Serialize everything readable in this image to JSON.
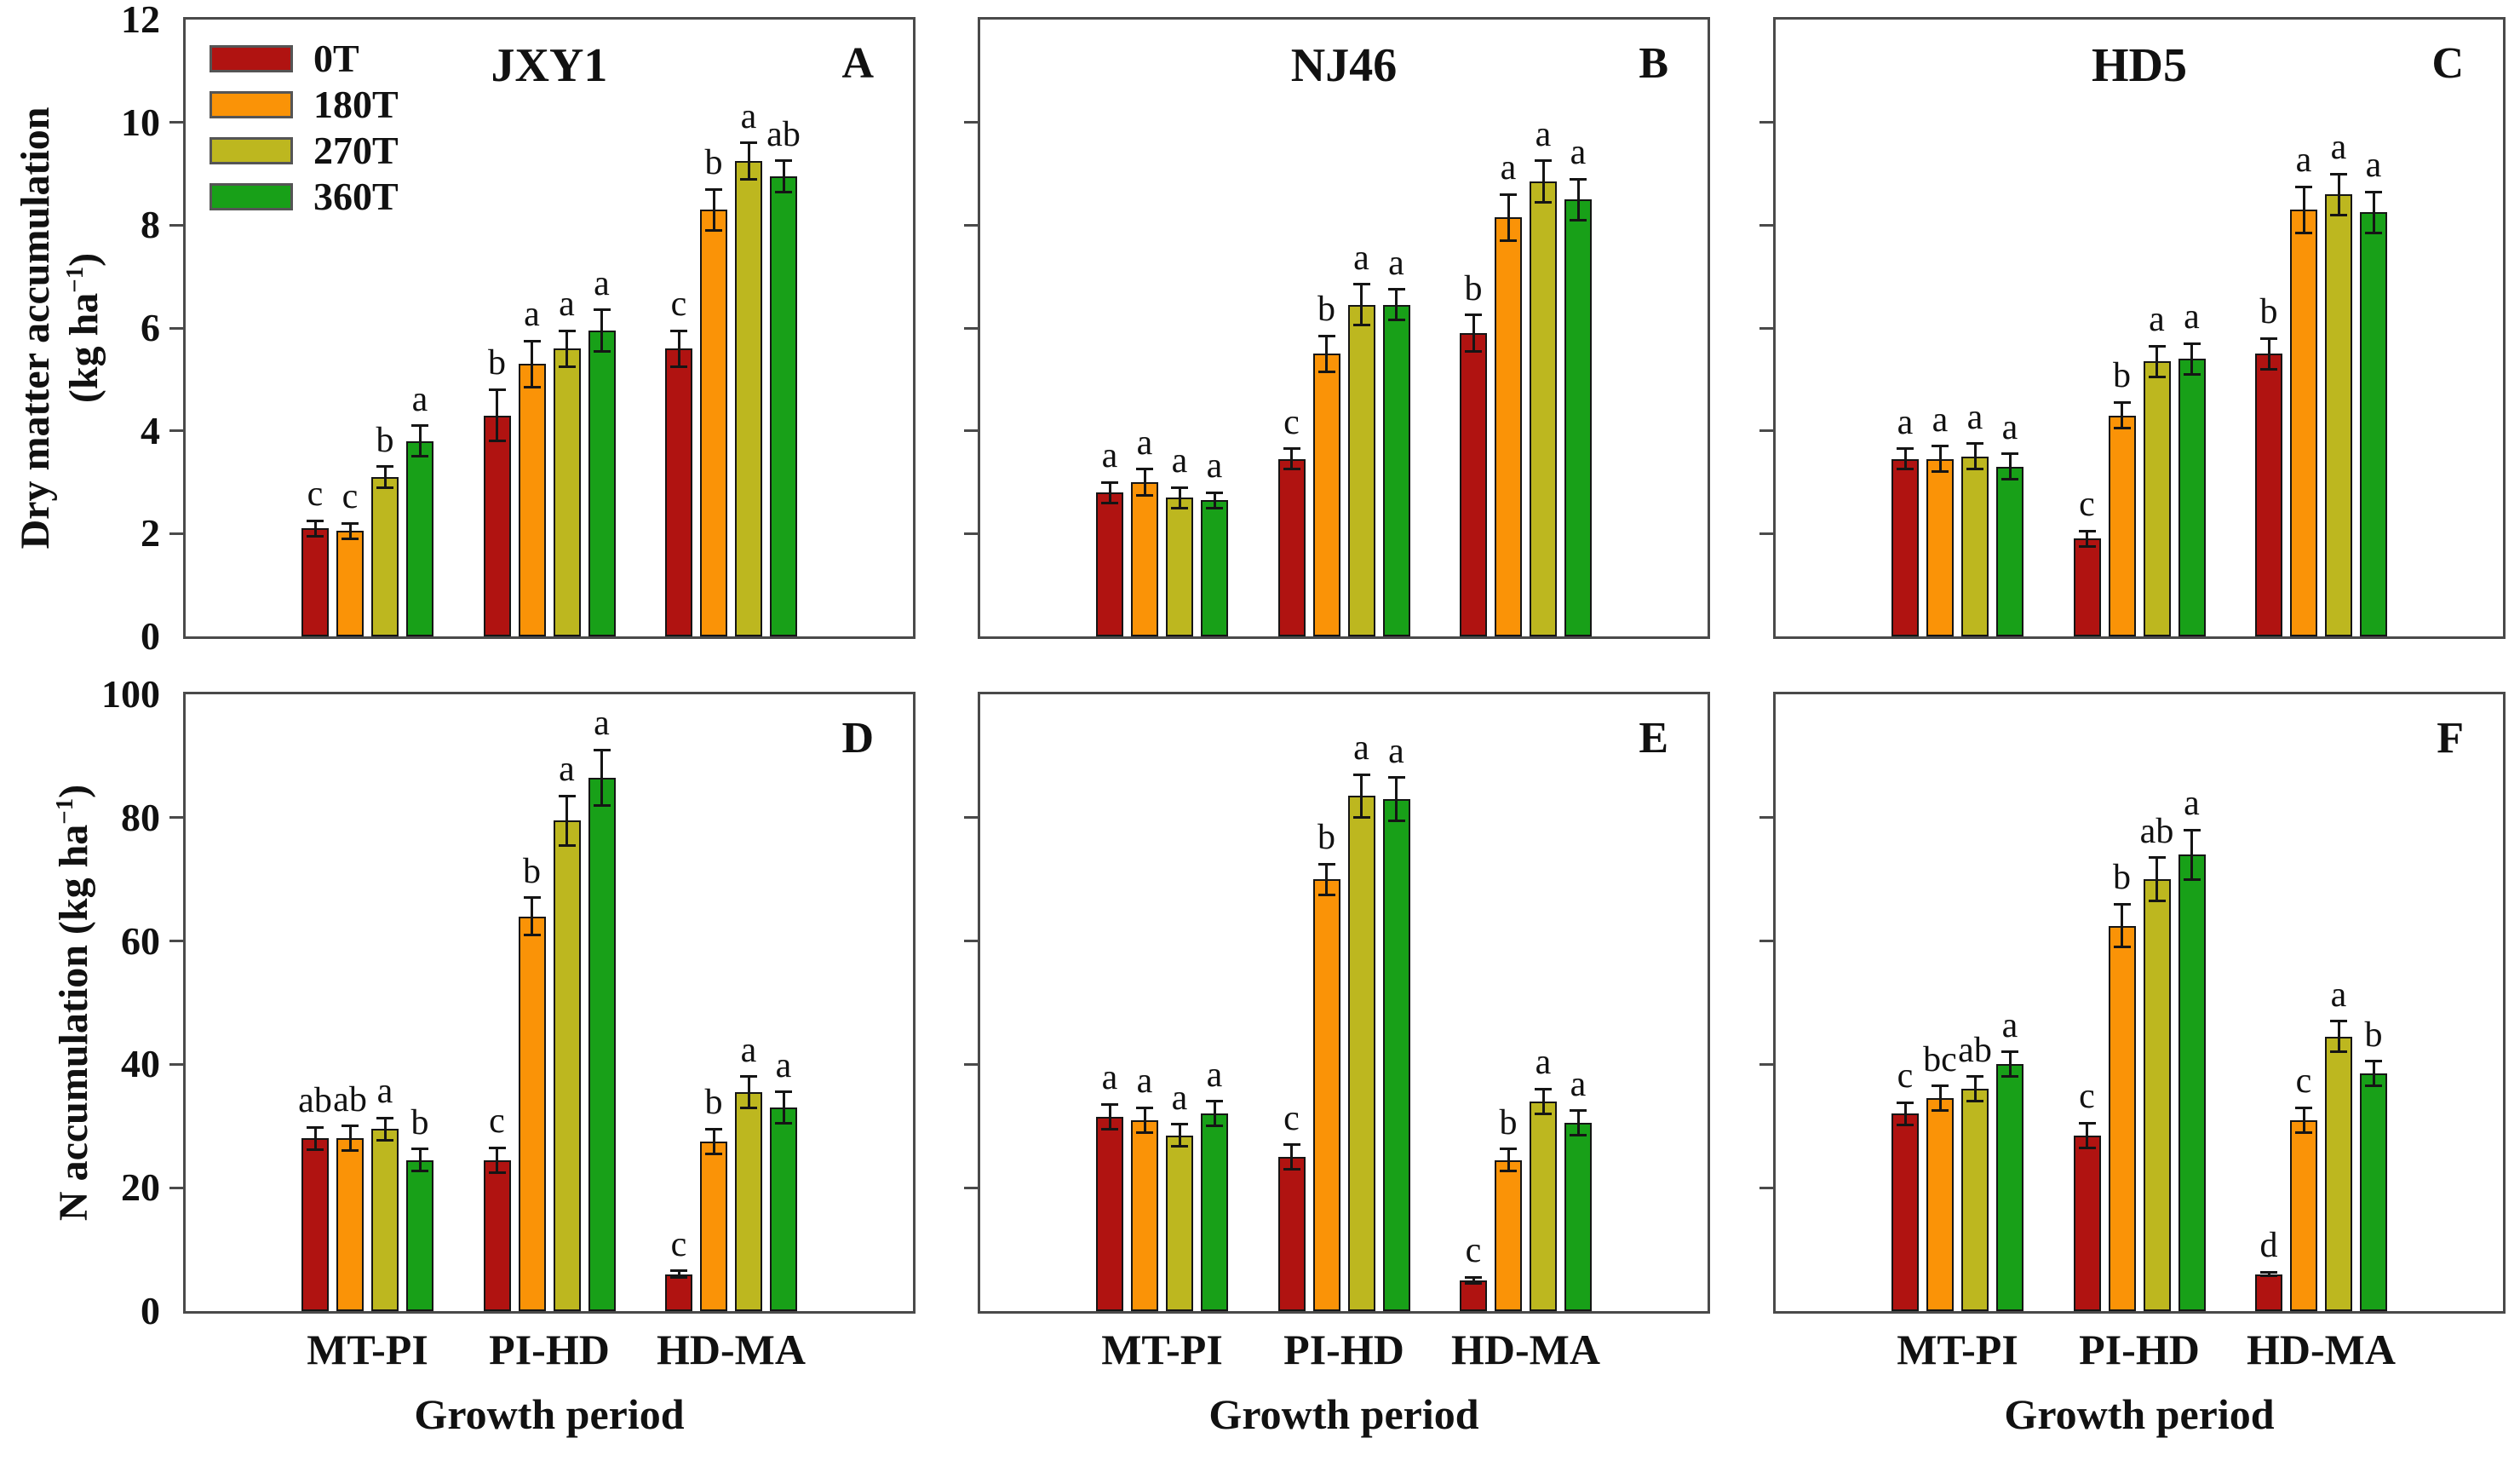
{
  "axis": {
    "ylabel_top_line1": "Dry matter accumulation",
    "ylabel_top_line2_pre": "(kg ha",
    "sup": "−1",
    "ylabel_top_line2_post": ")",
    "ylabel_bottom_pre": "N accumulation (kg ha",
    "ylabel_bottom_post": ")",
    "xlabel": "Growth period"
  },
  "chart_data": {
    "type": "bar",
    "categories": [
      "MT-PI",
      "PI-HD",
      "HD-MA"
    ],
    "series": [
      {
        "name": "0T",
        "color": "#B01311"
      },
      {
        "name": "180T",
        "color": "#FA9307"
      },
      {
        "name": "270T",
        "color": "#BDB71F"
      },
      {
        "name": "360T",
        "color": "#18A018"
      }
    ],
    "legend_position": "top-left-panel-A",
    "grid": false,
    "xlabel": "Growth period",
    "ylabel_top": "Dry matter accumulation (kg ha−1)",
    "ylabel_bottom": "N accumulation (kg ha−1)",
    "panels": [
      {
        "letter": "A",
        "title": "JXY1",
        "row": 0,
        "col": 0,
        "ylim": [
          0,
          12
        ],
        "yticks": [
          0,
          2,
          4,
          6,
          8,
          10,
          12
        ],
        "groups": [
          {
            "category": "MT-PI",
            "bars": [
              {
                "series": "0T",
                "value": 2.1,
                "error": 0.15,
                "letter": "c"
              },
              {
                "series": "180T",
                "value": 2.05,
                "error": 0.15,
                "letter": "c"
              },
              {
                "series": "270T",
                "value": 3.1,
                "error": 0.2,
                "letter": "b"
              },
              {
                "series": "360T",
                "value": 3.8,
                "error": 0.3,
                "letter": "a"
              }
            ]
          },
          {
            "category": "PI-HD",
            "bars": [
              {
                "series": "0T",
                "value": 4.3,
                "error": 0.5,
                "letter": "b"
              },
              {
                "series": "180T",
                "value": 5.3,
                "error": 0.45,
                "letter": "a"
              },
              {
                "series": "270T",
                "value": 5.6,
                "error": 0.35,
                "letter": "a"
              },
              {
                "series": "360T",
                "value": 5.95,
                "error": 0.4,
                "letter": "a"
              }
            ]
          },
          {
            "category": "HD-MA",
            "bars": [
              {
                "series": "0T",
                "value": 5.6,
                "error": 0.35,
                "letter": "c"
              },
              {
                "series": "180T",
                "value": 8.3,
                "error": 0.4,
                "letter": "b"
              },
              {
                "series": "270T",
                "value": 9.25,
                "error": 0.35,
                "letter": "a"
              },
              {
                "series": "360T",
                "value": 8.95,
                "error": 0.3,
                "letter": "ab"
              }
            ]
          }
        ]
      },
      {
        "letter": "B",
        "title": "NJ46",
        "row": 0,
        "col": 1,
        "ylim": [
          0,
          12
        ],
        "yticks": [
          0,
          2,
          4,
          6,
          8,
          10,
          12
        ],
        "groups": [
          {
            "category": "MT-PI",
            "bars": [
              {
                "series": "0T",
                "value": 2.8,
                "error": 0.2,
                "letter": "a"
              },
              {
                "series": "180T",
                "value": 3.0,
                "error": 0.25,
                "letter": "a"
              },
              {
                "series": "270T",
                "value": 2.7,
                "error": 0.2,
                "letter": "a"
              },
              {
                "series": "360T",
                "value": 2.65,
                "error": 0.15,
                "letter": "a"
              }
            ]
          },
          {
            "category": "PI-HD",
            "bars": [
              {
                "series": "0T",
                "value": 3.45,
                "error": 0.2,
                "letter": "c"
              },
              {
                "series": "180T",
                "value": 5.5,
                "error": 0.35,
                "letter": "b"
              },
              {
                "series": "270T",
                "value": 6.45,
                "error": 0.4,
                "letter": "a"
              },
              {
                "series": "360T",
                "value": 6.45,
                "error": 0.3,
                "letter": "a"
              }
            ]
          },
          {
            "category": "HD-MA",
            "bars": [
              {
                "series": "0T",
                "value": 5.9,
                "error": 0.35,
                "letter": "b"
              },
              {
                "series": "180T",
                "value": 8.15,
                "error": 0.45,
                "letter": "a"
              },
              {
                "series": "270T",
                "value": 8.85,
                "error": 0.4,
                "letter": "a"
              },
              {
                "series": "360T",
                "value": 8.5,
                "error": 0.4,
                "letter": "a"
              }
            ]
          }
        ]
      },
      {
        "letter": "C",
        "title": "HD5",
        "row": 0,
        "col": 2,
        "ylim": [
          0,
          12
        ],
        "yticks": [
          0,
          2,
          4,
          6,
          8,
          10,
          12
        ],
        "groups": [
          {
            "category": "MT-PI",
            "bars": [
              {
                "series": "0T",
                "value": 3.45,
                "error": 0.2,
                "letter": "a"
              },
              {
                "series": "180T",
                "value": 3.45,
                "error": 0.25,
                "letter": "a"
              },
              {
                "series": "270T",
                "value": 3.5,
                "error": 0.25,
                "letter": "a"
              },
              {
                "series": "360T",
                "value": 3.3,
                "error": 0.25,
                "letter": "a"
              }
            ]
          },
          {
            "category": "PI-HD",
            "bars": [
              {
                "series": "0T",
                "value": 1.9,
                "error": 0.15,
                "letter": "c"
              },
              {
                "series": "180T",
                "value": 4.3,
                "error": 0.25,
                "letter": "b"
              },
              {
                "series": "270T",
                "value": 5.35,
                "error": 0.3,
                "letter": "a"
              },
              {
                "series": "360T",
                "value": 5.4,
                "error": 0.3,
                "letter": "a"
              }
            ]
          },
          {
            "category": "HD-MA",
            "bars": [
              {
                "series": "0T",
                "value": 5.5,
                "error": 0.3,
                "letter": "b"
              },
              {
                "series": "180T",
                "value": 8.3,
                "error": 0.45,
                "letter": "a"
              },
              {
                "series": "270T",
                "value": 8.6,
                "error": 0.4,
                "letter": "a"
              },
              {
                "series": "360T",
                "value": 8.25,
                "error": 0.4,
                "letter": "a"
              }
            ]
          }
        ]
      },
      {
        "letter": "D",
        "title": "",
        "row": 1,
        "col": 0,
        "ylim": [
          0,
          100
        ],
        "yticks": [
          0,
          20,
          40,
          60,
          80,
          100
        ],
        "groups": [
          {
            "category": "MT-PI",
            "bars": [
              {
                "series": "0T",
                "value": 28.0,
                "error": 1.8,
                "letter": "ab"
              },
              {
                "series": "180T",
                "value": 28.0,
                "error": 2.0,
                "letter": "ab"
              },
              {
                "series": "270T",
                "value": 29.5,
                "error": 1.8,
                "letter": "a"
              },
              {
                "series": "360T",
                "value": 24.5,
                "error": 1.8,
                "letter": "b"
              }
            ]
          },
          {
            "category": "PI-HD",
            "bars": [
              {
                "series": "0T",
                "value": 24.5,
                "error": 2.0,
                "letter": "c"
              },
              {
                "series": "180T",
                "value": 64.0,
                "error": 3.0,
                "letter": "b"
              },
              {
                "series": "270T",
                "value": 79.5,
                "error": 4.0,
                "letter": "a"
              },
              {
                "series": "360T",
                "value": 86.5,
                "error": 4.5,
                "letter": "a"
              }
            ]
          },
          {
            "category": "HD-MA",
            "bars": [
              {
                "series": "0T",
                "value": 6.0,
                "error": 0.5,
                "letter": "c"
              },
              {
                "series": "180T",
                "value": 27.5,
                "error": 2.0,
                "letter": "b"
              },
              {
                "series": "270T",
                "value": 35.5,
                "error": 2.5,
                "letter": "a"
              },
              {
                "series": "360T",
                "value": 33.0,
                "error": 2.5,
                "letter": "a"
              }
            ]
          }
        ]
      },
      {
        "letter": "E",
        "title": "",
        "row": 1,
        "col": 1,
        "ylim": [
          0,
          100
        ],
        "yticks": [
          0,
          20,
          40,
          60,
          80,
          100
        ],
        "groups": [
          {
            "category": "MT-PI",
            "bars": [
              {
                "series": "0T",
                "value": 31.5,
                "error": 2.0,
                "letter": "a"
              },
              {
                "series": "180T",
                "value": 31.0,
                "error": 2.0,
                "letter": "a"
              },
              {
                "series": "270T",
                "value": 28.5,
                "error": 1.8,
                "letter": "a"
              },
              {
                "series": "360T",
                "value": 32.0,
                "error": 2.0,
                "letter": "a"
              }
            ]
          },
          {
            "category": "PI-HD",
            "bars": [
              {
                "series": "0T",
                "value": 25.0,
                "error": 2.0,
                "letter": "c"
              },
              {
                "series": "180T",
                "value": 70.0,
                "error": 2.5,
                "letter": "b"
              },
              {
                "series": "270T",
                "value": 83.5,
                "error": 3.5,
                "letter": "a"
              },
              {
                "series": "360T",
                "value": 83.0,
                "error": 3.5,
                "letter": "a"
              }
            ]
          },
          {
            "category": "HD-MA",
            "bars": [
              {
                "series": "0T",
                "value": 5.0,
                "error": 0.5,
                "letter": "c"
              },
              {
                "series": "180T",
                "value": 24.5,
                "error": 1.8,
                "letter": "b"
              },
              {
                "series": "270T",
                "value": 34.0,
                "error": 2.0,
                "letter": "a"
              },
              {
                "series": "360T",
                "value": 30.5,
                "error": 2.0,
                "letter": "a"
              }
            ]
          }
        ]
      },
      {
        "letter": "F",
        "title": "",
        "row": 1,
        "col": 2,
        "ylim": [
          0,
          100
        ],
        "yticks": [
          0,
          20,
          40,
          60,
          80,
          100
        ],
        "groups": [
          {
            "category": "MT-PI",
            "bars": [
              {
                "series": "0T",
                "value": 32.0,
                "error": 1.8,
                "letter": "c"
              },
              {
                "series": "180T",
                "value": 34.5,
                "error": 2.0,
                "letter": "bc"
              },
              {
                "series": "270T",
                "value": 36.0,
                "error": 2.0,
                "letter": "ab"
              },
              {
                "series": "360T",
                "value": 40.0,
                "error": 2.0,
                "letter": "a"
              }
            ]
          },
          {
            "category": "PI-HD",
            "bars": [
              {
                "series": "0T",
                "value": 28.5,
                "error": 2.0,
                "letter": "c"
              },
              {
                "series": "180T",
                "value": 62.5,
                "error": 3.5,
                "letter": "b"
              },
              {
                "series": "270T",
                "value": 70.0,
                "error": 3.5,
                "letter": "ab"
              },
              {
                "series": "360T",
                "value": 74.0,
                "error": 4.0,
                "letter": "a"
              }
            ]
          },
          {
            "category": "HD-MA",
            "bars": [
              {
                "series": "0T",
                "value": 6.0,
                "error": 0.3,
                "letter": "d"
              },
              {
                "series": "180T",
                "value": 31.0,
                "error": 2.0,
                "letter": "c"
              },
              {
                "series": "270T",
                "value": 44.5,
                "error": 2.5,
                "letter": "a"
              },
              {
                "series": "360T",
                "value": 38.5,
                "error": 2.0,
                "letter": "b"
              }
            ]
          }
        ]
      }
    ]
  }
}
